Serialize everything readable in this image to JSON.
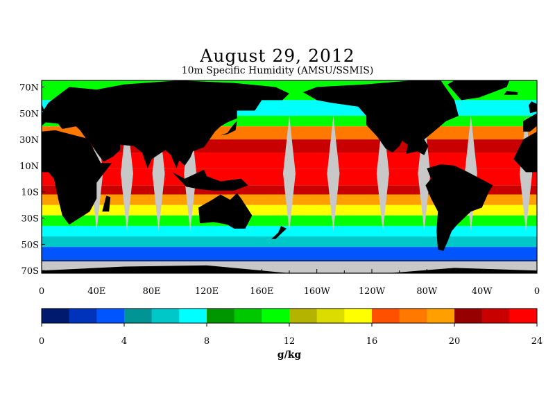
{
  "title": "August 29, 2012",
  "subtitle": "10m Specific Humidity (AMSU/SSMIS)",
  "map": {
    "lat_labels": [
      "70N",
      "50N",
      "30N",
      "10N",
      "10S",
      "30S",
      "50S",
      "70S"
    ],
    "lat_values": [
      70,
      50,
      30,
      10,
      -10,
      -30,
      -50,
      -70
    ],
    "lon_labels": [
      "0",
      "40E",
      "80E",
      "120E",
      "160E",
      "160W",
      "120W",
      "80W",
      "40W",
      "0"
    ],
    "lon_values": [
      0,
      40,
      80,
      120,
      160,
      200,
      240,
      280,
      320,
      360
    ],
    "land_color": "#000000",
    "nodata_color": "#c8c8c8"
  },
  "colorbar": {
    "min": 0,
    "max": 24,
    "tick_labels": [
      "0",
      "4",
      "8",
      "12",
      "16",
      "20",
      "24"
    ],
    "tick_values": [
      0,
      4,
      8,
      12,
      16,
      20,
      24
    ],
    "unit": "g/kg",
    "colors": [
      "#001a6e",
      "#0033bb",
      "#0055ff",
      "#009494",
      "#00c8c8",
      "#00ffff",
      "#009600",
      "#00c800",
      "#00ff00",
      "#b4b400",
      "#dcdc00",
      "#ffff00",
      "#ff5000",
      "#ff7800",
      "#ffa000",
      "#960000",
      "#c80000",
      "#ff0000"
    ]
  }
}
